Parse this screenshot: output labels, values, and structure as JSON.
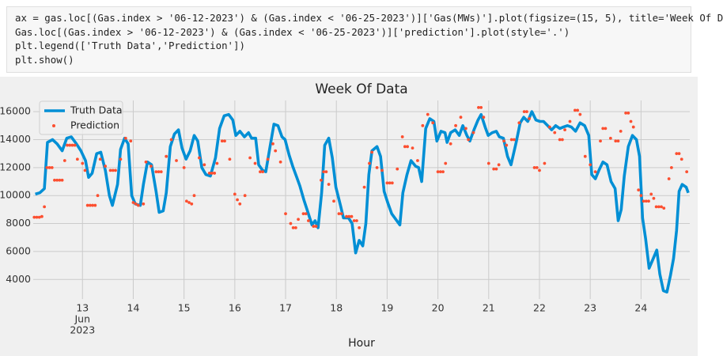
{
  "code": {
    "lines": [
      "ax = gas.loc[(Gas.index > '06-12-2023') & (Gas.index < '06-25-2023')]['Gas(MWs)'].plot(figsize=(15, 5), title='Week Of D",
      "Gas.loc[(Gas.index > '06-12-2023') & (Gas.index < '06-25-2023')]['prediction'].plot(style='.')",
      "plt.legend(['Truth Data','Prediction'])",
      "plt.show()"
    ]
  },
  "chart_data": {
    "type": "line",
    "title": "Week Of Data",
    "xlabel": "Hour",
    "x_tick_sublabels": [
      "Jun",
      "2023"
    ],
    "xlim": [
      12.03,
      24.96
    ],
    "xticks": [
      13,
      14,
      15,
      16,
      17,
      18,
      19,
      20,
      21,
      22,
      23,
      24
    ],
    "ylim": [
      2600,
      16800
    ],
    "yticks": [
      4000,
      6000,
      8000,
      10000,
      12000,
      14000,
      16000
    ],
    "grid": true,
    "legend": "upper left",
    "series": [
      {
        "name": "Truth Data",
        "color": "#008fd5",
        "style": "line",
        "x": [
          12.07,
          12.16,
          12.25,
          12.31,
          12.41,
          12.5,
          12.6,
          12.69,
          12.78,
          12.88,
          12.97,
          13.06,
          13.12,
          13.19,
          13.28,
          13.36,
          13.45,
          13.53,
          13.59,
          13.69,
          13.75,
          13.83,
          13.9,
          13.97,
          14.04,
          14.14,
          14.2,
          14.28,
          14.36,
          14.45,
          14.51,
          14.59,
          14.65,
          14.73,
          14.81,
          14.89,
          14.96,
          15.04,
          15.12,
          15.2,
          15.27,
          15.35,
          15.43,
          15.52,
          15.62,
          15.7,
          15.79,
          15.88,
          15.96,
          16.02,
          16.1,
          16.19,
          16.27,
          16.33,
          16.41,
          16.47,
          16.55,
          16.61,
          16.69,
          16.77,
          16.85,
          16.93,
          16.99,
          17.07,
          17.14,
          17.22,
          17.28,
          17.36,
          17.44,
          17.52,
          17.58,
          17.64,
          17.71,
          17.77,
          17.85,
          17.92,
          17.99,
          18.08,
          18.14,
          18.24,
          18.31,
          18.38,
          18.45,
          18.52,
          18.58,
          18.64,
          18.7,
          18.8,
          18.87,
          18.94,
          19.01,
          19.09,
          19.17,
          19.25,
          19.31,
          19.39,
          19.47,
          19.56,
          19.62,
          19.68,
          19.76,
          19.84,
          19.92,
          19.98,
          20.06,
          20.14,
          20.18,
          20.25,
          20.34,
          20.42,
          20.49,
          20.57,
          20.63,
          20.71,
          20.79,
          20.85,
          20.93,
          20.99,
          21.07,
          21.15,
          21.21,
          21.29,
          21.37,
          21.44,
          21.54,
          21.62,
          21.69,
          21.77,
          21.85,
          21.93,
          22.01,
          22.08,
          22.16,
          22.24,
          22.32,
          22.4,
          22.47,
          22.55,
          22.63,
          22.71,
          22.8,
          22.89,
          22.97,
          23.03,
          23.1,
          23.17,
          23.25,
          23.33,
          23.41,
          23.49,
          23.55,
          23.61,
          23.67,
          23.75,
          23.83,
          23.91,
          23.97,
          24.03,
          24.09,
          24.16,
          24.23,
          24.31,
          24.37,
          24.44,
          24.51,
          24.58,
          24.64,
          24.7,
          24.75,
          24.81,
          24.89,
          24.93
        ],
        "values": [
          10100,
          10200,
          10500,
          13800,
          14000,
          13700,
          13200,
          14100,
          14200,
          13700,
          13200,
          12500,
          11300,
          11600,
          13000,
          13100,
          11800,
          10000,
          9300,
          10800,
          13300,
          14100,
          13700,
          10000,
          9400,
          9300,
          10800,
          12400,
          12200,
          10300,
          8800,
          8900,
          10200,
          13500,
          14400,
          14700,
          13400,
          12600,
          13200,
          14300,
          13900,
          12000,
          11500,
          11400,
          12700,
          14800,
          15700,
          15800,
          15400,
          14300,
          14600,
          14200,
          14500,
          14100,
          14100,
          12200,
          11800,
          11700,
          13400,
          15100,
          15000,
          14200,
          14000,
          12900,
          12100,
          11300,
          10700,
          9700,
          8800,
          7900,
          8200,
          7700,
          10200,
          13600,
          14100,
          12700,
          10600,
          9300,
          8400,
          8400,
          8000,
          5900,
          6800,
          6400,
          8000,
          11500,
          13200,
          13500,
          12800,
          10300,
          9500,
          8700,
          8300,
          7900,
          10200,
          11500,
          12500,
          12100,
          12000,
          11000,
          14800,
          15500,
          15300,
          13900,
          14600,
          14500,
          13800,
          14500,
          14700,
          14300,
          15000,
          14300,
          13900,
          14700,
          15400,
          15800,
          14900,
          14300,
          14500,
          14600,
          14200,
          14100,
          12800,
          12200,
          13800,
          15200,
          15600,
          15300,
          16000,
          15400,
          15300,
          15300,
          15000,
          14700,
          15000,
          14800,
          14900,
          15000,
          14900,
          14600,
          15200,
          15000,
          14300,
          11500,
          11200,
          11800,
          12400,
          12200,
          11000,
          10500,
          8200,
          9000,
          11400,
          13500,
          14300,
          14000,
          12800,
          8400,
          6900,
          4800,
          5400,
          6100,
          4400,
          3200,
          3100,
          4300,
          5500,
          7500,
          10300,
          10800,
          10600,
          10200
        ]
      },
      {
        "name": "Prediction",
        "color": "#fc4f30",
        "style": "dots",
        "x": [
          12.05,
          12.1,
          12.15,
          12.2,
          12.25,
          12.3,
          12.35,
          12.4,
          12.45,
          12.5,
          12.55,
          12.6,
          12.65,
          12.7,
          12.75,
          12.8,
          12.85,
          12.9,
          13.0,
          13.05,
          13.1,
          13.15,
          13.2,
          13.25,
          13.3,
          13.35,
          13.45,
          13.55,
          13.6,
          13.65,
          13.75,
          13.85,
          13.95,
          14.0,
          14.05,
          14.1,
          14.2,
          14.25,
          14.35,
          14.45,
          14.5,
          14.55,
          14.65,
          14.75,
          14.85,
          15.0,
          15.05,
          15.1,
          15.15,
          15.2,
          15.3,
          15.4,
          15.5,
          15.55,
          15.6,
          15.65,
          15.75,
          15.8,
          15.9,
          16.0,
          16.05,
          16.1,
          16.2,
          16.3,
          16.4,
          16.5,
          16.55,
          16.65,
          16.75,
          16.8,
          16.9,
          17.0,
          17.1,
          17.15,
          17.2,
          17.25,
          17.35,
          17.4,
          17.45,
          17.55,
          17.6,
          17.7,
          17.75,
          17.8,
          17.85,
          17.95,
          18.05,
          18.1,
          18.2,
          18.25,
          18.3,
          18.35,
          18.4,
          18.45,
          18.55,
          18.65,
          18.7,
          18.8,
          18.9,
          19.0,
          19.05,
          19.1,
          19.2,
          19.3,
          19.35,
          19.4,
          19.5,
          19.6,
          19.7,
          19.8,
          19.9,
          20.0,
          20.05,
          20.1,
          20.15,
          20.25,
          20.35,
          20.45,
          20.55,
          20.6,
          20.7,
          20.8,
          20.85,
          20.9,
          21.0,
          21.1,
          21.15,
          21.2,
          21.3,
          21.35,
          21.45,
          21.5,
          21.6,
          21.7,
          21.75,
          21.8,
          21.9,
          21.95,
          22.0,
          22.1,
          22.2,
          22.3,
          22.4,
          22.45,
          22.5,
          22.6,
          22.7,
          22.75,
          22.8,
          22.9,
          23.0,
          23.1,
          23.2,
          23.25,
          23.3,
          23.4,
          23.5,
          23.55,
          23.6,
          23.7,
          23.75,
          23.8,
          23.85,
          23.95,
          24.0,
          24.05,
          24.1,
          24.15,
          24.2,
          24.25,
          24.3,
          24.35,
          24.4,
          24.45,
          24.55,
          24.6,
          24.7,
          24.75,
          24.8,
          24.9
        ],
        "values": [
          8450,
          8450,
          8450,
          8500,
          9200,
          12000,
          12000,
          12000,
          11100,
          11100,
          11100,
          11100,
          12500,
          13600,
          13600,
          13600,
          13600,
          12600,
          12300,
          11800,
          9300,
          9300,
          9300,
          9300,
          10000,
          12600,
          12100,
          11800,
          11800,
          11800,
          12600,
          14100,
          13900,
          9500,
          9400,
          9300,
          9400,
          12400,
          12100,
          11700,
          11700,
          11700,
          12800,
          14000,
          12500,
          12000,
          9600,
          9500,
          9400,
          10000,
          12700,
          12200,
          11600,
          11600,
          11600,
          12300,
          13900,
          13900,
          12600,
          10100,
          9700,
          9400,
          10000,
          12700,
          12300,
          11700,
          11700,
          12600,
          13700,
          13200,
          12400,
          8700,
          8000,
          7700,
          7700,
          8300,
          8700,
          8700,
          8200,
          7800,
          7800,
          11100,
          11700,
          11700,
          10800,
          9600,
          8700,
          8700,
          8500,
          8500,
          8500,
          8200,
          8200,
          7700,
          10600,
          12300,
          13100,
          12000,
          11800,
          10900,
          10900,
          10900,
          11900,
          14200,
          13500,
          13500,
          13400,
          12500,
          15000,
          15800,
          15200,
          11700,
          11700,
          11700,
          12300,
          13700,
          15000,
          15600,
          14800,
          14000,
          14500,
          16300,
          16300,
          15600,
          12300,
          11900,
          11900,
          12200,
          13900,
          13600,
          14000,
          14000,
          15200,
          16000,
          16000,
          15500,
          12000,
          12000,
          11800,
          12300,
          14900,
          14500,
          14000,
          14000,
          14700,
          15300,
          16100,
          16100,
          15800,
          12800,
          12200,
          11700,
          13900,
          14800,
          14800,
          14100,
          13900,
          13900,
          14600,
          15900,
          15900,
          15300,
          14900,
          10400,
          10000,
          9600,
          9600,
          9600,
          10100,
          9800,
          9200,
          9200,
          9200,
          9100,
          11200,
          12000,
          13000,
          13000,
          12600,
          11700
        ]
      }
    ]
  }
}
